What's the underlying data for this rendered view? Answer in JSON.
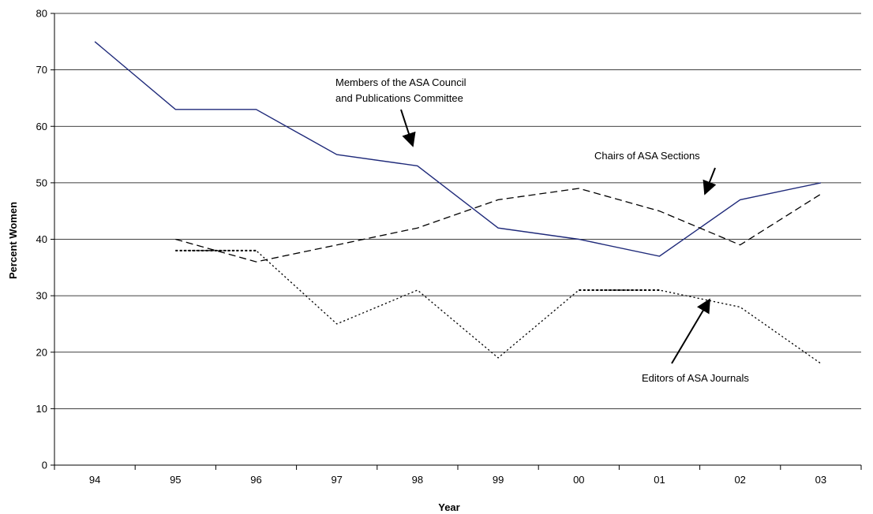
{
  "chart_data": {
    "type": "line",
    "title": "",
    "xlabel": "Year",
    "ylabel": "Percent Women",
    "categories": [
      "94",
      "95",
      "96",
      "97",
      "98",
      "99",
      "00",
      "01",
      "02",
      "03"
    ],
    "ylim": [
      0,
      80
    ],
    "yticks": [
      0,
      10,
      20,
      30,
      40,
      50,
      60,
      70,
      80
    ],
    "grid": true,
    "legend": "none (inline annotations with arrows)",
    "series": [
      {
        "style": "solid",
        "color": "#1f2a7a",
        "values": [
          75,
          63,
          63,
          55,
          53,
          42,
          40,
          37,
          47,
          50
        ]
      },
      {
        "style": "dashed",
        "color": "#000000",
        "values": [
          null,
          40,
          36,
          39,
          42,
          47,
          49,
          45,
          39,
          48
        ]
      },
      {
        "style": "dotted",
        "color": "#000000",
        "values": [
          null,
          38,
          38,
          25,
          31,
          19,
          31,
          31,
          28,
          18
        ],
        "flat_segments": [
          [
            1,
            2
          ],
          [
            6,
            7
          ]
        ]
      }
    ],
    "annotations": [
      {
        "id": "council",
        "lines": [
          "Members of the ASA Council",
          "and Publications Committee"
        ],
        "series_index": 0
      },
      {
        "id": "sections",
        "lines": [
          "Chairs of ASA Sections"
        ],
        "series_index": 1
      },
      {
        "id": "journals",
        "lines": [
          "Editors of ASA Journals"
        ],
        "series_index": 2
      }
    ]
  }
}
